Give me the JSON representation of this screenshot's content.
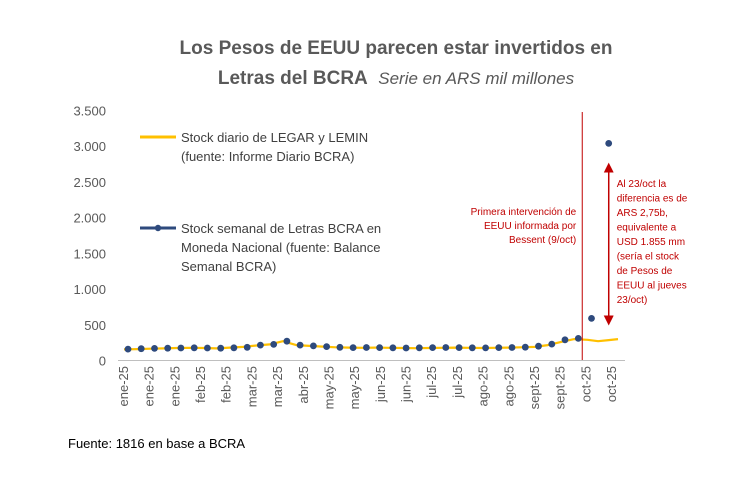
{
  "chart_data": {
    "type": "line",
    "title_line1": "Los Pesos de EEUU parecen estar invertidos en",
    "title_line2_bold": "Letras del BCRA",
    "subtitle": "Serie en ARS mil millones",
    "x_labels": [
      "ene-25",
      "ene-25",
      "ene-25",
      "feb-25",
      "feb-25",
      "mar-25",
      "mar-25",
      "abr-25",
      "may-25",
      "may-25",
      "jun-25",
      "jun-25",
      "jul-25",
      "jul-25",
      "ago-25",
      "ago-25",
      "sept-25",
      "sept-25",
      "oct-25",
      "oct-25"
    ],
    "yticks": [
      0,
      500,
      1000,
      1500,
      2000,
      2500,
      3000,
      3500
    ],
    "ytick_labels": [
      "0",
      "500",
      "1.000",
      "1.500",
      "2.000",
      "2.500",
      "3.000",
      "3.500"
    ],
    "ylim": [
      0,
      3500
    ],
    "grid": false,
    "series": [
      {
        "name_line1": "Stock diario de LEGAR y LEMIN",
        "name_line2": "(fuente: Informe Diario BCRA)",
        "color": "#ffc000",
        "style": "line",
        "points": [
          [
            0.0,
            155
          ],
          [
            1.0,
            160
          ],
          [
            2.0,
            165
          ],
          [
            3.0,
            170
          ],
          [
            4.0,
            175
          ],
          [
            5.0,
            178
          ],
          [
            6.0,
            175
          ],
          [
            7.0,
            170
          ],
          [
            8.0,
            180
          ],
          [
            9.0,
            190
          ],
          [
            10.0,
            210
          ],
          [
            11.0,
            225
          ],
          [
            12.0,
            270
          ],
          [
            13.0,
            215
          ],
          [
            14.0,
            205
          ],
          [
            15.0,
            195
          ],
          [
            16.0,
            185
          ],
          [
            17.0,
            180
          ],
          [
            18.0,
            178
          ],
          [
            19.0,
            180
          ],
          [
            20.0,
            178
          ],
          [
            21.0,
            175
          ],
          [
            22.0,
            172
          ],
          [
            23.0,
            175
          ],
          [
            24.0,
            178
          ],
          [
            25.0,
            180
          ],
          [
            26.0,
            178
          ],
          [
            27.0,
            175
          ],
          [
            28.0,
            178
          ],
          [
            29.0,
            180
          ],
          [
            30.0,
            185
          ],
          [
            31.0,
            190
          ],
          [
            32.0,
            215
          ],
          [
            33.0,
            260
          ],
          [
            34.0,
            300
          ],
          [
            35.0,
            290
          ],
          [
            35.8,
            270
          ],
          [
            36.6,
            285
          ],
          [
            37.3,
            300
          ]
        ]
      },
      {
        "name_line1": "Stock semanal de Letras BCRA en",
        "name_line2": "Moneda Nacional (fuente: Balance",
        "name_line3": "Semanal BCRA)",
        "color": "#2e4a7d",
        "style": "line-markers",
        "points": [
          [
            0.3,
            160
          ],
          [
            1.3,
            165
          ],
          [
            2.3,
            170
          ],
          [
            3.3,
            172
          ],
          [
            4.3,
            175
          ],
          [
            5.3,
            178
          ],
          [
            6.3,
            175
          ],
          [
            7.3,
            172
          ],
          [
            8.3,
            178
          ],
          [
            9.3,
            185
          ],
          [
            10.3,
            215
          ],
          [
            11.3,
            225
          ],
          [
            12.3,
            270
          ],
          [
            13.3,
            215
          ],
          [
            14.3,
            205
          ],
          [
            15.3,
            195
          ],
          [
            16.3,
            185
          ],
          [
            17.3,
            180
          ],
          [
            18.3,
            182
          ],
          [
            19.3,
            180
          ],
          [
            20.3,
            178
          ],
          [
            21.3,
            175
          ],
          [
            22.3,
            178
          ],
          [
            23.3,
            180
          ],
          [
            24.3,
            182
          ],
          [
            25.3,
            180
          ],
          [
            26.3,
            178
          ],
          [
            27.3,
            176
          ],
          [
            28.3,
            180
          ],
          [
            29.3,
            182
          ],
          [
            30.3,
            186
          ],
          [
            31.3,
            200
          ],
          [
            32.3,
            230
          ],
          [
            33.3,
            290
          ],
          [
            34.3,
            310
          ],
          [
            35.3,
            590
          ],
          [
            36.6,
            3040
          ]
        ]
      }
    ],
    "vline": {
      "x": 34.6,
      "color": "#c00000"
    },
    "annotation_left": [
      "Primera intervención de",
      "EEUU informada por",
      "Bessent (9/oct)"
    ],
    "annotation_right": [
      "Al 23/oct la",
      "diferencia es de",
      "ARS 2,75b,",
      "equivalente a",
      "USD 1.855 mm",
      "(sería el stock",
      "de Pesos de",
      "EEUU al jueves",
      "23/oct)"
    ],
    "arrow": {
      "x": 36.6,
      "y_top": 2700,
      "y_bottom": 560
    }
  },
  "footer": {
    "source": "Fuente: 1816 en base a BCRA"
  }
}
